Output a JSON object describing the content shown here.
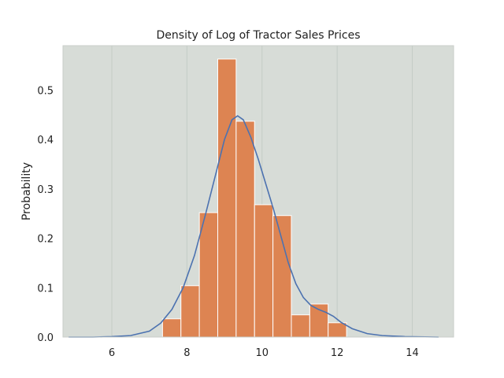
{
  "chart_data": {
    "type": "bar",
    "title": "Density of Log of Tractor Sales Prices",
    "xlabel": "",
    "ylabel": "Probability",
    "xlim": [
      4.7,
      15.1
    ],
    "ylim": [
      0,
      0.59
    ],
    "grid": {
      "x": true,
      "y": false
    },
    "xticks": [
      6,
      8,
      10,
      12,
      14
    ],
    "yticks": [
      0.0,
      0.1,
      0.2,
      0.3,
      0.4,
      0.5
    ],
    "colors": {
      "background": "#d7dcd7",
      "bars": "#dd8452",
      "bar_edge": "#ffffff",
      "line": "#4c72b0",
      "grid": "#c4ccc6",
      "frame": "#c8cec9"
    },
    "histogram": {
      "bin_edges": [
        7.35,
        7.84,
        8.33,
        8.82,
        9.31,
        9.8,
        10.29,
        10.78,
        11.27,
        11.76,
        12.25
      ],
      "values": [
        0.037,
        0.104,
        0.252,
        0.563,
        0.437,
        0.268,
        0.246,
        0.045,
        0.067,
        0.029
      ]
    },
    "kde": {
      "x": [
        4.85,
        5.5,
        6.0,
        6.5,
        7.0,
        7.3,
        7.6,
        7.9,
        8.2,
        8.5,
        8.8,
        9.0,
        9.2,
        9.35,
        9.5,
        9.7,
        9.9,
        10.1,
        10.3,
        10.5,
        10.7,
        10.9,
        11.1,
        11.3,
        11.5,
        11.7,
        11.9,
        12.1,
        12.4,
        12.8,
        13.2,
        13.8,
        14.7
      ],
      "y": [
        0.0,
        0.0,
        0.001,
        0.003,
        0.012,
        0.028,
        0.056,
        0.1,
        0.165,
        0.25,
        0.34,
        0.4,
        0.44,
        0.448,
        0.44,
        0.405,
        0.36,
        0.31,
        0.26,
        0.205,
        0.15,
        0.108,
        0.08,
        0.064,
        0.056,
        0.05,
        0.042,
        0.03,
        0.017,
        0.007,
        0.003,
        0.001,
        0.0
      ]
    }
  }
}
